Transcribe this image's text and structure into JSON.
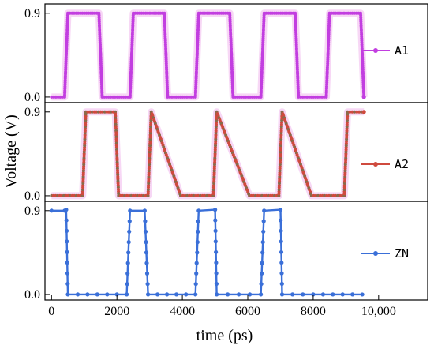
{
  "chart_data": {
    "type": "line",
    "xlabel": "time (ps)",
    "ylabel": "Voltage (V)",
    "xlim": [
      -200,
      11500
    ],
    "x_ticks": [
      0,
      2000,
      4000,
      6000,
      8000,
      10000
    ],
    "x_tick_labels": [
      "0",
      "2000",
      "4000",
      "6000",
      "8000",
      "10,000"
    ],
    "y_ticks": [
      0.0,
      0.9
    ],
    "y_tick_labels": [
      "0.0",
      "0.9"
    ],
    "ylim": [
      -0.06,
      1.0
    ],
    "series": [
      {
        "name": "A1",
        "color": "#c23ee0",
        "shadow": "#f5cdf2",
        "points": [
          [
            0,
            0
          ],
          [
            400,
            0
          ],
          [
            500,
            0.9
          ],
          [
            1450,
            0.9
          ],
          [
            1550,
            0
          ],
          [
            2400,
            0
          ],
          [
            2500,
            0.9
          ],
          [
            3450,
            0.9
          ],
          [
            3550,
            0
          ],
          [
            4400,
            0
          ],
          [
            4500,
            0.9
          ],
          [
            5450,
            0.9
          ],
          [
            5550,
            0
          ],
          [
            6400,
            0
          ],
          [
            6500,
            0.9
          ],
          [
            7450,
            0.9
          ],
          [
            7550,
            0
          ],
          [
            8400,
            0
          ],
          [
            8500,
            0.9
          ],
          [
            9450,
            0.9
          ],
          [
            9550,
            0
          ]
        ]
      },
      {
        "name": "A2",
        "color": "#cf4a3e",
        "marker": "#8a6a4a",
        "shadow": "#f5cdf2",
        "points": [
          [
            0,
            0
          ],
          [
            950,
            0
          ],
          [
            1050,
            0.9
          ],
          [
            1950,
            0.9
          ],
          [
            2050,
            0
          ],
          [
            2950,
            0
          ],
          [
            3050,
            0.9
          ],
          [
            3950,
            0
          ],
          [
            4950,
            0
          ],
          [
            5050,
            0.9
          ],
          [
            6050,
            0
          ],
          [
            6950,
            0
          ],
          [
            7050,
            0.9
          ],
          [
            7950,
            0
          ],
          [
            8950,
            0
          ],
          [
            9050,
            0.9
          ],
          [
            9550,
            0.9
          ]
        ]
      },
      {
        "name": "ZN",
        "color": "#3a6fd8",
        "points": [
          [
            0,
            0.9
          ],
          [
            400,
            0.9
          ],
          [
            450,
            0.91
          ],
          [
            500,
            0
          ],
          [
            2300,
            0
          ],
          [
            2400,
            0.9
          ],
          [
            2850,
            0.9
          ],
          [
            2950,
            0
          ],
          [
            4400,
            0
          ],
          [
            4500,
            0.9
          ],
          [
            5000,
            0.91
          ],
          [
            5050,
            0
          ],
          [
            6400,
            0
          ],
          [
            6500,
            0.9
          ],
          [
            7000,
            0.91
          ],
          [
            7050,
            0
          ],
          [
            8000,
            0
          ],
          [
            9500,
            0
          ]
        ]
      }
    ]
  }
}
